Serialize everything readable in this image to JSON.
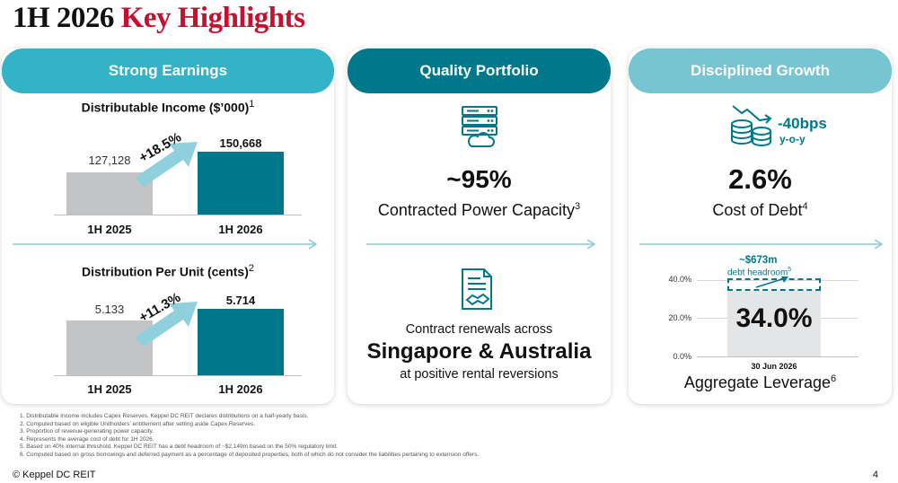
{
  "header": {
    "title_year": "1H 2026",
    "title_highlight": "Key Highlights"
  },
  "colors": {
    "brand_red": "#c8102e",
    "teal_dark": "#00788c",
    "teal_mid": "#33b3c5",
    "teal_light": "#77c4d3",
    "grey_bar": "#c3c4c6"
  },
  "earnings": {
    "header": "Strong Earnings",
    "di": {
      "title": "Distributable Income ($’000)",
      "footnote_ref": "1",
      "prev_value": "127,128",
      "curr_value": "150,668",
      "growth": "+18.5%",
      "prev_label": "1H 2025",
      "curr_label": "1H 2026"
    },
    "dpu": {
      "title": "Distribution Per Unit (cents)",
      "footnote_ref": "2",
      "prev_value": "5.133",
      "curr_value": "5.714",
      "growth": "+11.3%",
      "prev_label": "1H 2025",
      "curr_label": "1H 2026"
    }
  },
  "quality": {
    "header": "Quality Portfolio",
    "server_icon": "server-cloud-icon",
    "percent": "~95%",
    "percent_label": "Contracted Power Capacity",
    "percent_footnote_ref": "3",
    "contract_icon": "contract-handshake-icon",
    "renewals_line": "Contract renewals across",
    "renewals_markets": "Singapore & Australia",
    "renewals_note": "at positive rental reversions"
  },
  "growth": {
    "header": "Disciplined Growth",
    "coins_icon": "coins-decline-icon",
    "bps_value": "-40bps",
    "bps_period": "y-o-y",
    "cost_value": "2.6%",
    "cost_label": "Cost of Debt",
    "cost_footnote_ref": "4",
    "headroom_value": "~$673m",
    "headroom_label": "debt headroom",
    "headroom_footnote_ref": "5",
    "y_ticks": [
      "40.0%",
      "20.0%",
      "0.0%"
    ],
    "leverage_value": "34.0%",
    "leverage_date": "30 Jun 2026",
    "leverage_label": "Aggregate Leverage",
    "leverage_footnote_ref": "6"
  },
  "footnotes": [
    "1.    Distributable Income includes Capex Reserves. Keppel DC REIT declares distributions on a half-yearly basis.",
    "2.    Computed based on eligible Unitholders’ entitlement after setting aside Capex Reserves.",
    "3.    Proportion of revenue-generating power capacity.",
    "4.    Represents the average cost of debt for 1H 2026.",
    "5.    Based on 40% internal threshold. Keppel DC REIT has a debt headroom of ~$2,149m based on the 50% regulatory limit.",
    "6.    Computed based on gross borrowings and deferred payment as a percentage of deposited properties, both of which do not consider the  liabilities pertaining to extension offers."
  ],
  "footer": {
    "copyright": "© Keppel DC REIT",
    "page": "4"
  }
}
